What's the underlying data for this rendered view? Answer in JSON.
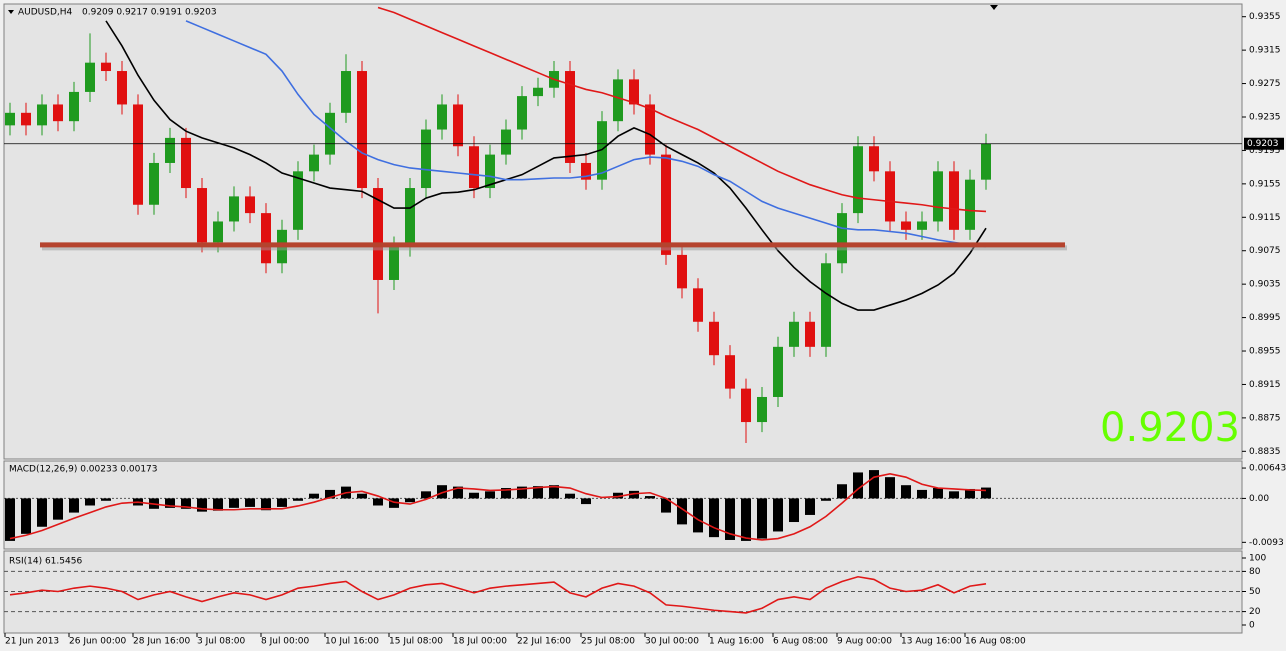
{
  "chart_data": [
    {
      "type": "candlestick",
      "title": "AUDUSD,H4",
      "subtitle": "0.9209 0.9217 0.9191 0.9203",
      "categories": [
        "21 Jun 2013",
        null,
        null,
        null,
        "26 Jun 00:00",
        null,
        null,
        null,
        "28 Jun 16:00",
        null,
        null,
        null,
        "3 Jul 08:00",
        null,
        null,
        null,
        "8 Jul 00:00",
        null,
        null,
        null,
        "10 Jul 16:00",
        null,
        null,
        null,
        "15 Jul 08:00",
        null,
        null,
        null,
        "18 Jul 00:00",
        null,
        null,
        null,
        "22 Jul 16:00",
        null,
        null,
        null,
        "25 Jul 08:00",
        null,
        null,
        null,
        "30 Jul 00:00",
        null,
        null,
        null,
        "1 Aug 16:00",
        null,
        null,
        null,
        "6 Aug 08:00",
        null,
        null,
        null,
        "9 Aug 00:00",
        null,
        null,
        null,
        "13 Aug 16:00",
        null,
        null,
        null,
        "16 Aug 08:00",
        null
      ],
      "open": [
        0.9225,
        0.924,
        0.9225,
        0.925,
        0.923,
        0.9265,
        0.93,
        0.929,
        0.925,
        0.913,
        0.918,
        0.921,
        0.915,
        0.9085,
        0.911,
        0.914,
        0.912,
        0.906,
        0.91,
        0.917,
        0.919,
        0.924,
        0.929,
        0.915,
        0.904,
        0.908,
        0.915,
        0.922,
        0.925,
        0.92,
        0.915,
        0.919,
        0.922,
        0.926,
        0.927,
        0.929,
        0.918,
        0.916,
        0.923,
        0.928,
        0.925,
        0.919,
        0.907,
        0.903,
        0.899,
        0.895,
        0.891,
        0.887,
        0.89,
        0.896,
        0.899,
        0.896,
        0.906,
        0.912,
        0.92,
        0.917,
        0.911,
        0.91,
        0.911,
        0.917,
        0.91,
        0.916
      ],
      "high": [
        0.9252,
        0.9252,
        0.9262,
        0.9262,
        0.9277,
        0.9335,
        0.9312,
        0.9302,
        0.9262,
        0.9192,
        0.9222,
        0.9222,
        0.9162,
        0.9122,
        0.9152,
        0.9152,
        0.9132,
        0.9112,
        0.9182,
        0.9202,
        0.9252,
        0.931,
        0.9302,
        0.9162,
        0.9092,
        0.9162,
        0.9232,
        0.9262,
        0.9262,
        0.9212,
        0.9202,
        0.9232,
        0.9272,
        0.9282,
        0.9302,
        0.9302,
        0.9192,
        0.9242,
        0.9292,
        0.9292,
        0.9262,
        0.9202,
        0.9082,
        0.9042,
        0.9002,
        0.8962,
        0.8922,
        0.8912,
        0.8972,
        0.9002,
        0.9002,
        0.9072,
        0.9132,
        0.9212,
        0.9212,
        0.9182,
        0.9122,
        0.9122,
        0.9182,
        0.9182,
        0.9172,
        0.9215
      ],
      "low": [
        0.9213,
        0.9213,
        0.9213,
        0.9218,
        0.9218,
        0.9253,
        0.9278,
        0.9238,
        0.9118,
        0.9118,
        0.9168,
        0.9138,
        0.9073,
        0.9073,
        0.9098,
        0.9108,
        0.9048,
        0.9048,
        0.9088,
        0.9158,
        0.9178,
        0.9228,
        0.9138,
        0.9,
        0.9028,
        0.9068,
        0.9138,
        0.9208,
        0.9188,
        0.9138,
        0.9138,
        0.9178,
        0.9208,
        0.9248,
        0.9258,
        0.9168,
        0.9148,
        0.9148,
        0.9218,
        0.9238,
        0.9178,
        0.9058,
        0.9018,
        0.8978,
        0.8938,
        0.8898,
        0.8845,
        0.8858,
        0.8888,
        0.8948,
        0.8948,
        0.8948,
        0.9048,
        0.9108,
        0.9158,
        0.9098,
        0.9088,
        0.9088,
        0.9098,
        0.9088,
        0.9088,
        0.9148
      ],
      "close": [
        0.924,
        0.9225,
        0.925,
        0.923,
        0.9265,
        0.93,
        0.929,
        0.925,
        0.913,
        0.918,
        0.921,
        0.915,
        0.9085,
        0.911,
        0.914,
        0.912,
        0.906,
        0.91,
        0.917,
        0.919,
        0.924,
        0.929,
        0.915,
        0.904,
        0.908,
        0.915,
        0.922,
        0.925,
        0.92,
        0.915,
        0.919,
        0.922,
        0.926,
        0.927,
        0.929,
        0.918,
        0.916,
        0.923,
        0.928,
        0.925,
        0.919,
        0.907,
        0.903,
        0.899,
        0.895,
        0.891,
        0.887,
        0.89,
        0.896,
        0.899,
        0.896,
        0.906,
        0.912,
        0.92,
        0.917,
        0.911,
        0.91,
        0.911,
        0.917,
        0.91,
        0.916,
        0.9203
      ],
      "up_color": "#1f9a1f",
      "down_color": "#e01010",
      "series": [
        {
          "color": "#000000",
          "values": [
            null,
            null,
            null,
            null,
            null,
            null,
            0.935,
            0.932,
            0.9285,
            0.9255,
            0.9232,
            0.9218,
            0.921,
            0.9204,
            0.9198,
            0.919,
            0.918,
            0.9168,
            0.9162,
            0.9156,
            0.915,
            0.9148,
            0.9146,
            0.9136,
            0.9126,
            0.9126,
            0.9138,
            0.9144,
            0.9145,
            0.9148,
            0.9154,
            0.916,
            0.9166,
            0.9176,
            0.9186,
            0.9188,
            0.919,
            0.9196,
            0.9212,
            0.9222,
            0.9214,
            0.92,
            0.919,
            0.918,
            0.9168,
            0.915,
            0.9126,
            0.91,
            0.9075,
            0.9055,
            0.9038,
            0.9024,
            0.9012,
            0.9004,
            0.9004,
            0.901,
            0.9016,
            0.9024,
            0.9034,
            0.9048,
            0.9072,
            0.9102
          ]
        },
        {
          "color": "#3f6fe0",
          "values": [
            null,
            null,
            null,
            null,
            null,
            null,
            null,
            null,
            null,
            null,
            null,
            0.935,
            0.9342,
            0.9334,
            0.9326,
            0.9318,
            0.931,
            0.929,
            0.9262,
            0.9238,
            0.9222,
            0.9206,
            0.9192,
            0.9184,
            0.9178,
            0.9174,
            0.9172,
            0.917,
            0.9168,
            0.9166,
            0.9164,
            0.916,
            0.916,
            0.9161,
            0.9162,
            0.9162,
            0.9164,
            0.9168,
            0.9176,
            0.9184,
            0.9187,
            0.9186,
            0.9182,
            0.9176,
            0.9166,
            0.9158,
            0.9146,
            0.9134,
            0.9126,
            0.912,
            0.9114,
            0.9108,
            0.9102,
            0.91,
            0.91,
            0.9098,
            0.9096,
            0.9092,
            0.9088,
            0.9085,
            0.9082,
            0.908
          ]
        },
        {
          "color": "#e01818",
          "values": [
            null,
            null,
            null,
            null,
            null,
            null,
            null,
            null,
            null,
            null,
            null,
            null,
            null,
            null,
            null,
            null,
            null,
            null,
            null,
            null,
            null,
            null,
            null,
            0.9366,
            0.936,
            0.9352,
            0.9344,
            0.9336,
            0.9328,
            0.932,
            0.9312,
            0.9304,
            0.9296,
            0.9288,
            0.928,
            0.9274,
            0.9268,
            0.9264,
            0.9258,
            0.9252,
            0.9245,
            0.9236,
            0.9228,
            0.922,
            0.921,
            0.92,
            0.919,
            0.918,
            0.917,
            0.9162,
            0.9154,
            0.9148,
            0.9142,
            0.9138,
            0.9136,
            0.9134,
            0.9132,
            0.913,
            0.9127,
            0.9125,
            0.9123,
            0.9122
          ]
        }
      ],
      "bid": 0.9203,
      "bid_color": "#66ff00",
      "support_level": 0.9082,
      "support_color": "#b5432e",
      "ylim": [
        0.8827,
        0.9369
      ],
      "yticks": [
        0.8835,
        0.8875,
        0.8915,
        0.8955,
        0.8995,
        0.9035,
        0.9075,
        0.9115,
        0.9155,
        0.9195,
        0.9235,
        0.9275,
        0.9315,
        0.9355
      ]
    },
    {
      "type": "macd",
      "title": "MACD(12,26,9) 0.00233 0.00173",
      "color": "#000000",
      "values": [
        -0.009,
        -0.0075,
        -0.006,
        -0.0045,
        -0.003,
        -0.0015,
        -0.0005,
        0.0,
        -0.0015,
        -0.0022,
        -0.002,
        -0.0022,
        -0.0028,
        -0.0026,
        -0.002,
        -0.0018,
        -0.0025,
        -0.0018,
        -0.0005,
        0.001,
        0.0018,
        0.0025,
        0.001,
        -0.0015,
        -0.002,
        -0.0008,
        0.0015,
        0.0028,
        0.0025,
        0.0012,
        0.0015,
        0.0022,
        0.0025,
        0.0026,
        0.0028,
        0.001,
        -0.0012,
        0.0,
        0.0012,
        0.0016,
        0.0005,
        -0.003,
        -0.0055,
        -0.0072,
        -0.0082,
        -0.0088,
        -0.009,
        -0.0085,
        -0.007,
        -0.005,
        -0.0035,
        -0.0005,
        0.003,
        0.0055,
        0.006,
        0.0045,
        0.0028,
        0.0018,
        0.0022,
        0.0015,
        0.002,
        0.0023
      ],
      "signal": {
        "color": "#e01818",
        "values": [
          -0.0085,
          -0.0078,
          -0.0068,
          -0.0055,
          -0.0042,
          -0.003,
          -0.0018,
          -0.001,
          -0.0008,
          -0.0012,
          -0.0016,
          -0.0018,
          -0.0022,
          -0.0024,
          -0.0024,
          -0.0022,
          -0.0022,
          -0.0022,
          -0.0016,
          -0.0008,
          0.0002,
          0.0012,
          0.0015,
          0.0005,
          -0.0008,
          -0.0012,
          -0.0002,
          0.0012,
          0.0022,
          0.002,
          0.0017,
          0.0018,
          0.002,
          0.0023,
          0.0025,
          0.0022,
          0.001,
          0.0002,
          0.0004,
          0.001,
          0.0012,
          0.0,
          -0.0022,
          -0.0045,
          -0.0062,
          -0.0075,
          -0.0084,
          -0.0088,
          -0.0085,
          -0.0075,
          -0.006,
          -0.0038,
          -0.001,
          0.002,
          0.0045,
          0.0052,
          0.0045,
          0.003,
          0.0022,
          0.002,
          0.0018,
          0.0017
        ]
      },
      "ylim": [
        -0.0105,
        0.0075
      ],
      "yticks": [
        -0.0093,
        {
          "value": 0,
          "label": "0.00"
        },
        0.00643
      ],
      "levels": [
        0
      ]
    },
    {
      "type": "line",
      "title": "RSI(14) 61.5456",
      "color": "#e01818",
      "values": [
        45,
        48,
        52,
        50,
        55,
        58,
        55,
        50,
        38,
        45,
        50,
        42,
        35,
        42,
        48,
        45,
        38,
        45,
        55,
        58,
        62,
        65,
        50,
        38,
        45,
        55,
        60,
        62,
        55,
        48,
        55,
        58,
        60,
        62,
        64,
        48,
        42,
        55,
        62,
        58,
        48,
        30,
        28,
        25,
        22,
        20,
        18,
        25,
        38,
        42,
        38,
        55,
        65,
        72,
        68,
        55,
        50,
        52,
        60,
        48,
        58,
        61.5
      ],
      "ylim": [
        0,
        100
      ],
      "yticks": [
        0,
        20,
        50,
        80,
        100
      ],
      "levels": [
        20,
        50,
        80
      ]
    }
  ]
}
